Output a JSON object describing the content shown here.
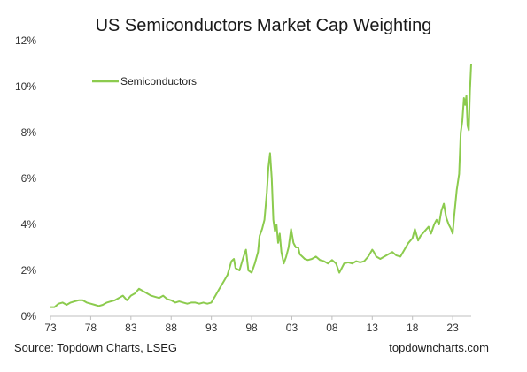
{
  "chart_data": {
    "type": "line",
    "title": "US Semiconductors Market Cap Weighting",
    "xlabel": "",
    "ylabel": "",
    "xlim": [
      1973,
      2025.3
    ],
    "ylim": [
      0,
      12
    ],
    "y_ticks": [
      0,
      2,
      4,
      6,
      8,
      10,
      12
    ],
    "y_tick_labels": [
      "0%",
      "2%",
      "4%",
      "6%",
      "8%",
      "10%",
      "12%"
    ],
    "x_ticks": [
      1973,
      1978,
      1983,
      1988,
      1993,
      1998,
      2003,
      2008,
      2013,
      2018,
      2023
    ],
    "x_tick_labels": [
      "73",
      "78",
      "83",
      "88",
      "93",
      "98",
      "03",
      "08",
      "13",
      "18",
      "23"
    ],
    "grid": false,
    "legend": {
      "position": "top-left"
    },
    "line_color": "#8CCB4E",
    "series": [
      {
        "name": "Semiconductors",
        "x": [
          1973.0,
          1973.5,
          1974.0,
          1974.5,
          1975.0,
          1975.5,
          1976.0,
          1976.5,
          1977.0,
          1977.5,
          1978.0,
          1978.5,
          1979.0,
          1979.5,
          1980.0,
          1980.5,
          1981.0,
          1981.5,
          1982.0,
          1982.5,
          1983.0,
          1983.5,
          1984.0,
          1984.5,
          1985.0,
          1985.5,
          1986.0,
          1986.5,
          1987.0,
          1987.5,
          1988.0,
          1988.5,
          1989.0,
          1989.5,
          1990.0,
          1990.5,
          1991.0,
          1991.5,
          1992.0,
          1992.5,
          1993.0,
          1993.5,
          1994.0,
          1994.5,
          1995.0,
          1995.5,
          1995.8,
          1996.0,
          1996.5,
          1997.0,
          1997.3,
          1997.6,
          1998.0,
          1998.4,
          1998.8,
          1999.0,
          1999.3,
          1999.6,
          1999.9,
          2000.1,
          2000.3,
          2000.5,
          2000.7,
          2000.9,
          2001.1,
          2001.3,
          2001.5,
          2001.7,
          2002.0,
          2002.3,
          2002.6,
          2002.9,
          2003.2,
          2003.5,
          2003.8,
          2004.0,
          2004.3,
          2004.6,
          2005.0,
          2005.5,
          2006.0,
          2006.5,
          2007.0,
          2007.5,
          2008.0,
          2008.5,
          2008.9,
          2009.2,
          2009.5,
          2010.0,
          2010.5,
          2011.0,
          2011.5,
          2012.0,
          2012.5,
          2013.0,
          2013.2,
          2013.5,
          2014.0,
          2014.5,
          2015.0,
          2015.5,
          2016.0,
          2016.5,
          2017.0,
          2017.5,
          2018.0,
          2018.3,
          2018.7,
          2019.0,
          2019.5,
          2020.0,
          2020.3,
          2020.7,
          2021.0,
          2021.3,
          2021.6,
          2021.9,
          2022.2,
          2022.5,
          2022.8,
          2023.0,
          2023.2,
          2023.5,
          2023.8,
          2024.0,
          2024.2,
          2024.4,
          2024.55,
          2024.7,
          2024.85,
          2025.0,
          2025.15,
          2025.3
        ],
        "values": [
          0.4,
          0.4,
          0.55,
          0.6,
          0.5,
          0.6,
          0.65,
          0.7,
          0.7,
          0.6,
          0.55,
          0.5,
          0.45,
          0.5,
          0.6,
          0.65,
          0.7,
          0.8,
          0.9,
          0.7,
          0.9,
          1.0,
          1.2,
          1.1,
          1.0,
          0.9,
          0.85,
          0.8,
          0.9,
          0.75,
          0.7,
          0.6,
          0.65,
          0.6,
          0.55,
          0.6,
          0.6,
          0.55,
          0.6,
          0.55,
          0.6,
          0.9,
          1.2,
          1.5,
          1.8,
          2.4,
          2.5,
          2.1,
          2.0,
          2.6,
          2.9,
          2.0,
          1.9,
          2.3,
          2.8,
          3.5,
          3.8,
          4.2,
          5.4,
          6.5,
          7.1,
          6.0,
          4.2,
          3.7,
          4.0,
          3.2,
          3.6,
          2.8,
          2.3,
          2.6,
          3.0,
          3.8,
          3.2,
          3.0,
          3.0,
          2.7,
          2.6,
          2.5,
          2.45,
          2.5,
          2.6,
          2.45,
          2.4,
          2.3,
          2.45,
          2.3,
          1.9,
          2.1,
          2.3,
          2.35,
          2.3,
          2.4,
          2.35,
          2.4,
          2.6,
          2.9,
          2.8,
          2.6,
          2.5,
          2.6,
          2.7,
          2.8,
          2.65,
          2.6,
          2.9,
          3.2,
          3.4,
          3.8,
          3.3,
          3.5,
          3.7,
          3.9,
          3.6,
          4.0,
          4.2,
          4.0,
          4.6,
          4.9,
          4.3,
          4.0,
          3.8,
          3.6,
          4.4,
          5.5,
          6.2,
          8.0,
          8.5,
          9.5,
          9.2,
          9.6,
          8.3,
          8.1,
          9.8,
          11.0
        ]
      }
    ]
  },
  "texts": {
    "title": "US Semiconductors Market Cap Weighting",
    "source": "Source: Topdown Charts, LSEG",
    "brand": "topdowncharts.com"
  }
}
